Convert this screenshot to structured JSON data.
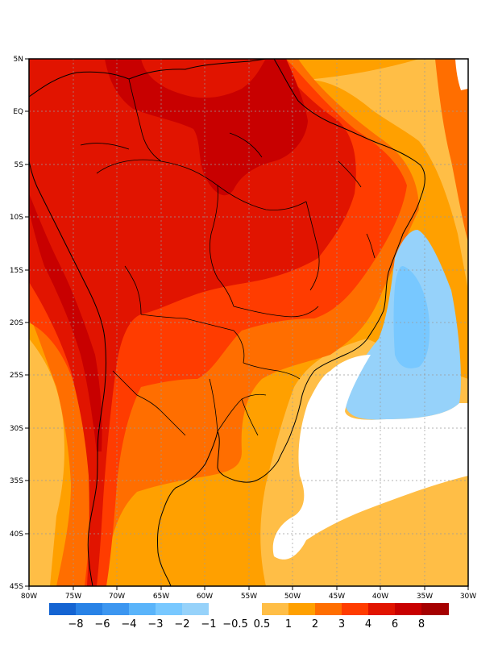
{
  "map": {
    "lon_range": [
      -80,
      -30
    ],
    "lat_range": [
      -45,
      5
    ],
    "gridlines": "dotted, every 5 degrees",
    "x_ticks": [
      "80W",
      "75W",
      "70W",
      "65W",
      "60W",
      "55W",
      "50W",
      "45W",
      "40W",
      "35W",
      "30W"
    ],
    "y_ticks": [
      "5N",
      "EQ",
      "5S",
      "10S",
      "15S",
      "20S",
      "25S",
      "30S",
      "35S",
      "40S",
      "45S"
    ]
  },
  "colorbar": {
    "colors": [
      "#1464d2",
      "#2882e6",
      "#3c96f0",
      "#5ab4fa",
      "#78c8ff",
      "#96d2fa",
      "#ffffff",
      "#ffbe46",
      "#ffa000",
      "#ff6e00",
      "#ff3c00",
      "#e11400",
      "#c80000",
      "#a50000"
    ],
    "labels": [
      "−8",
      "−6",
      "−4",
      "−3",
      "−2",
      "−1",
      "−0.5",
      "0.5",
      "1",
      "2",
      "3",
      "4",
      "6",
      "8"
    ]
  },
  "fill_colors": {
    "level_0p5_1": "#ffbe46",
    "level_1_2": "#ffa000",
    "level_2_3": "#ff6e00",
    "level_3_4": "#ff3c00",
    "level_4_6": "#e11400",
    "level_6_8": "#c80000",
    "level_m1_m0p5": "#96d2fa",
    "level_m2_m1": "#78c8ff",
    "land_border": "#000000"
  }
}
